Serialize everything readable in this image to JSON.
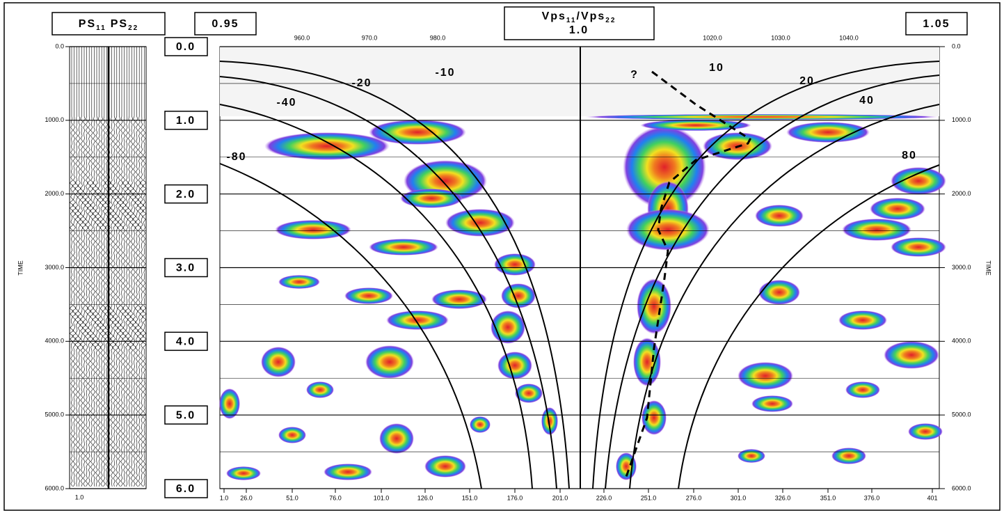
{
  "header": {
    "left_title": [
      "PS",
      "11",
      "PS",
      "22"
    ],
    "left_value": "0.95",
    "center_title": [
      "Vps",
      "11",
      "/Vps",
      "22"
    ],
    "center_value": "1.0",
    "right_value": "1.05"
  },
  "left_axis": {
    "title": "TIME",
    "ticks": [
      "0.0",
      "1000.0",
      "2000.0",
      "3000.0",
      "4000.0",
      "5000.0",
      "6000.0"
    ],
    "bottom_tick": "1.0"
  },
  "time_boxes": [
    "0.0",
    "1.0",
    "2.0",
    "3.0",
    "4.0",
    "5.0",
    "6.0"
  ],
  "top_axis": {
    "ticks": [
      "960.0",
      "970.0",
      "980.0",
      "1020.0",
      "1030.0",
      "1040.0"
    ]
  },
  "bottom_axis": {
    "ticks": [
      "1.0",
      "26.0",
      "51.0",
      "76.0",
      "101.0",
      "126.0",
      "151.0",
      "176.0",
      "201.0",
      "226.0",
      "251.0",
      "276.0",
      "301.0",
      "326.0",
      "351.0",
      "376.0",
      "401"
    ]
  },
  "right_axis": {
    "title": "TIME",
    "ticks": [
      "0.0",
      "1000.0",
      "2000.0",
      "3000.0",
      "4000.0",
      "5000.0",
      "6000.0"
    ]
  },
  "curve_labels": [
    "-10",
    "-20",
    "-40",
    "-80",
    "?",
    "10",
    "20",
    "40",
    "80"
  ]
}
